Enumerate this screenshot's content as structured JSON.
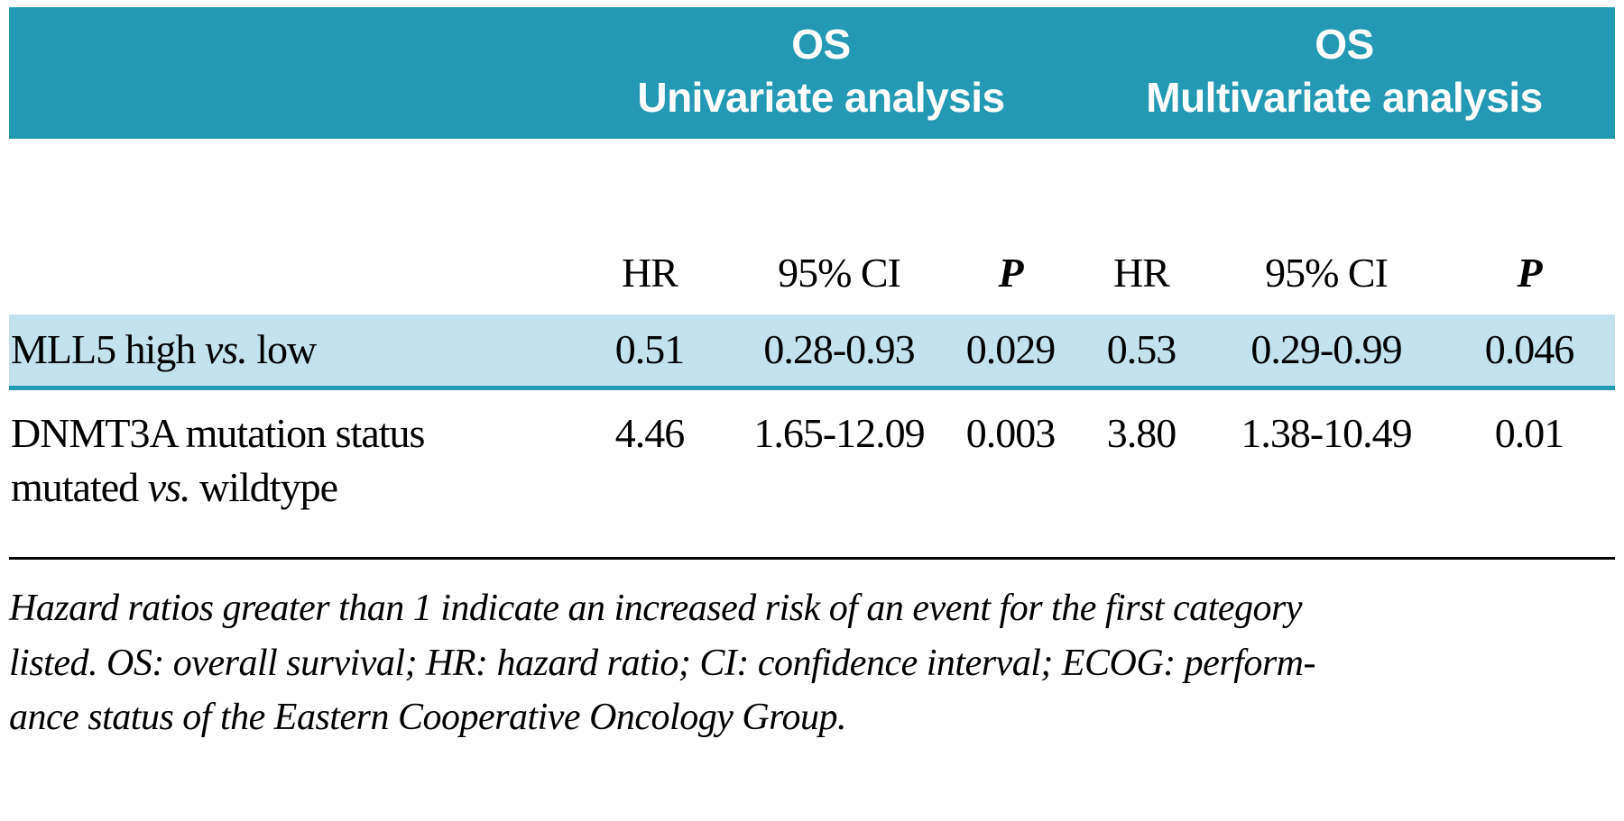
{
  "colors": {
    "header_teal": "#2399b4",
    "row_highlight": "#c2e3ed"
  },
  "table": {
    "header_groups": [
      {
        "line1": "OS",
        "line2": "Univariate analysis"
      },
      {
        "line1": "OS",
        "line2": "Multivariate analysis"
      }
    ],
    "columns": [
      "HR",
      "95% CI",
      "P",
      "HR",
      "95% CI",
      "P"
    ],
    "rows": [
      {
        "label_prefix": "MLL5 high ",
        "label_vs": "vs.",
        "label_suffix": " low",
        "values": [
          "0.51",
          "0.28-0.93",
          "0.029",
          "0.53",
          "0.29-0.99",
          "0.046"
        ]
      },
      {
        "label_line1": "DNMT3A mutation status",
        "label_line2_prefix": "mutated ",
        "label_vs": "vs.",
        "label_line2_suffix": " wildtype",
        "values": [
          "4.46",
          "1.65-12.09",
          "0.003",
          "3.80",
          "1.38-10.49",
          "0.01"
        ]
      }
    ],
    "footnote_lines": [
      "Hazard ratios greater than 1 indicate an increased risk of an event for the first category",
      "listed. OS: overall survival; HR: hazard ratio; CI: confidence interval; ECOG: perform-",
      "ance status of the Eastern Cooperative Oncology Group."
    ]
  }
}
